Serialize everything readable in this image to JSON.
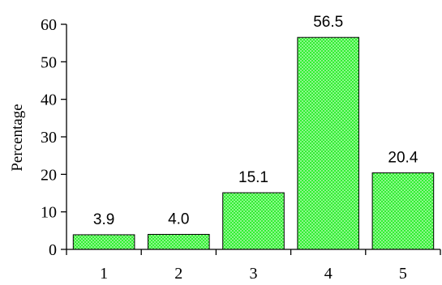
{
  "chart_data": {
    "type": "bar",
    "categories": [
      "1",
      "2",
      "3",
      "4",
      "5"
    ],
    "values": [
      3.9,
      4.0,
      15.1,
      56.5,
      20.4
    ],
    "data_labels": [
      "3.9",
      "4.0",
      "15.1",
      "56.5",
      "20.4"
    ],
    "y_ticks": [
      "0",
      "10",
      "20",
      "30",
      "40",
      "50",
      "60"
    ],
    "ylabel": "Percentage",
    "xlabel": "",
    "title": "",
    "ylim": [
      0,
      60
    ],
    "grid": false,
    "legend": "none",
    "bar_color": "#33ee33",
    "bar_pattern_color": "#ccffcc"
  }
}
